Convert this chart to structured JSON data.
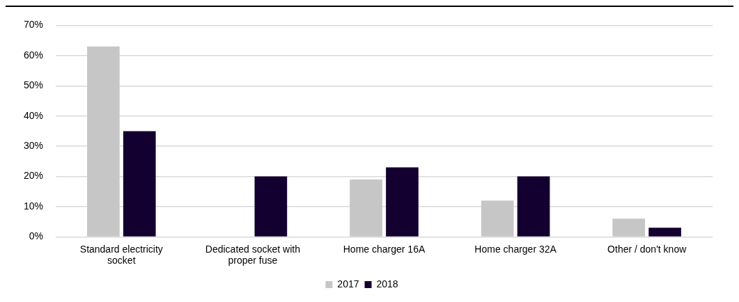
{
  "chart_data": {
    "type": "bar",
    "categories": [
      "Standard electricity socket",
      "Dedicated socket with proper fuse",
      "Home charger 16A",
      "Home charger 32A",
      "Other / don't know"
    ],
    "series": [
      {
        "name": "2017",
        "color": "#c6c6c6",
        "values": [
          63,
          null,
          19,
          12,
          6
        ]
      },
      {
        "name": "2018",
        "color": "#140030",
        "values": [
          35,
          20,
          23,
          20,
          3
        ]
      }
    ],
    "ylim": [
      0,
      70
    ],
    "yticks": [
      {
        "value": 0,
        "label": "0%"
      },
      {
        "value": 10,
        "label": "10%"
      },
      {
        "value": 20,
        "label": "20%"
      },
      {
        "value": 30,
        "label": "30%"
      },
      {
        "value": 40,
        "label": "40%"
      },
      {
        "value": 50,
        "label": "50%"
      },
      {
        "value": 60,
        "label": "60%"
      },
      {
        "value": 70,
        "label": "70%"
      }
    ],
    "grid": "y",
    "legend": "bottom"
  }
}
